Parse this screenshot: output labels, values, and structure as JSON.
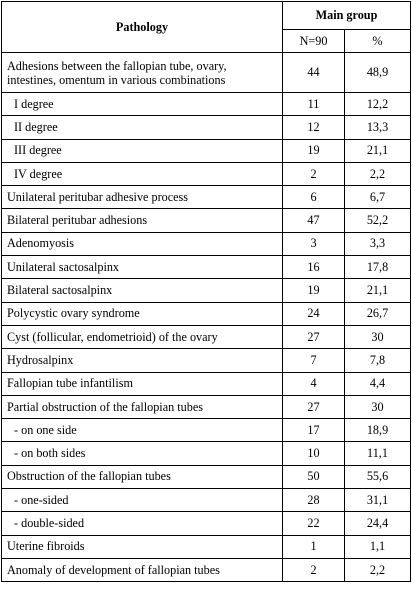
{
  "header": {
    "pathology": "Pathology",
    "main_group": "Main group",
    "n": "N=90",
    "pct": "%"
  },
  "rows": [
    {
      "label": "Adhesions between the fallopian tube, ovary, intestines, omentum in various combinations",
      "n": "44",
      "pct": "48,9"
    },
    {
      "label": "I degree",
      "n": "11",
      "pct": "12,2"
    },
    {
      "label": "II degree",
      "n": "12",
      "pct": "13,3"
    },
    {
      "label": "III degree",
      "n": "19",
      "pct": "21,1"
    },
    {
      "label": "IV degree",
      "n": "2",
      "pct": "2,2"
    },
    {
      "label": "Unilateral peritubar adhesive process",
      "n": "6",
      "pct": "6,7"
    },
    {
      "label": "Bilateral peritubar adhesions",
      "n": "47",
      "pct": "52,2"
    },
    {
      "label": "Adenomyosis",
      "n": "3",
      "pct": "3,3"
    },
    {
      "label": "Unilateral sactosalpinx",
      "n": "16",
      "pct": "17,8"
    },
    {
      "label": "Bilateral sactosalpinx",
      "n": "19",
      "pct": "21,1"
    },
    {
      "label": "Polycystic ovary syndrome",
      "n": "24",
      "pct": "26,7"
    },
    {
      "label": "Cyst (follicular, endometrioid) of the ovary",
      "n": "27",
      "pct": "30"
    },
    {
      "label": "Hydrosalpinx",
      "n": "7",
      "pct": "7,8"
    },
    {
      "label": "Fallopian tube infantilism",
      "n": "4",
      "pct": "4,4"
    },
    {
      "label": "Partial obstruction of the fallopian tubes",
      "n": "27",
      "pct": "30"
    },
    {
      "label": "- on one side",
      "n": "17",
      "pct": "18,9"
    },
    {
      "label": "- on both sides",
      "n": "10",
      "pct": "11,1"
    },
    {
      "label": "Obstruction of the fallopian tubes",
      "n": "50",
      "pct": "55,6"
    },
    {
      "label": "- one-sided",
      "n": "28",
      "pct": "31,1"
    },
    {
      "label": "- double-sided",
      "n": "22",
      "pct": "24,4"
    },
    {
      "label": "Uterine fibroids",
      "n": "1",
      "pct": "1,1"
    },
    {
      "label": "Anomaly of development of fallopian tubes",
      "n": "2",
      "pct": "2,2"
    }
  ]
}
